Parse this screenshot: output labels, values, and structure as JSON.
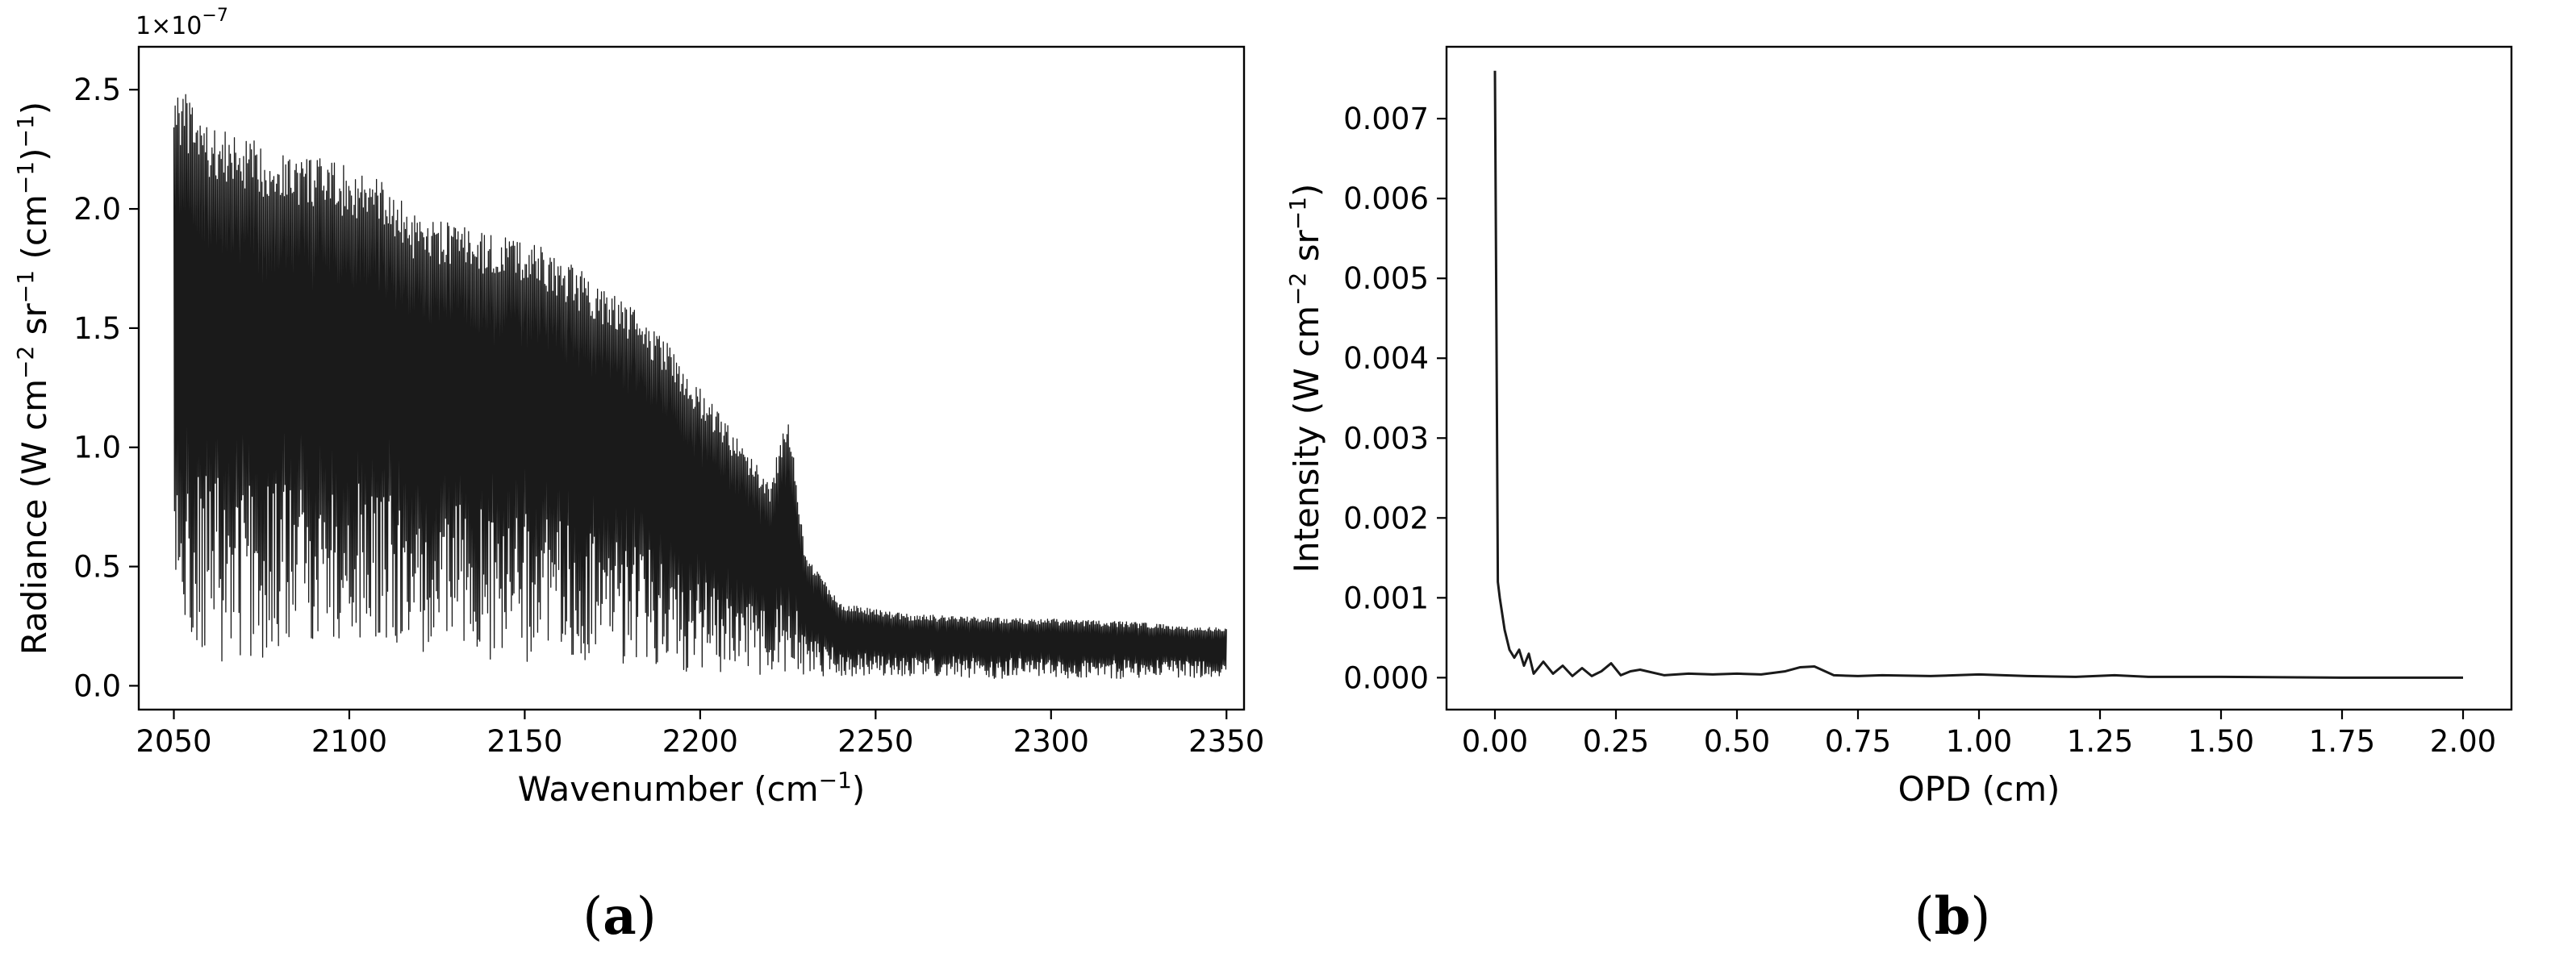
{
  "chart_data": [
    {
      "type": "line",
      "panel_label": "(a)",
      "panel_label_parts": [
        "(",
        "a",
        ")"
      ],
      "xlabel_parts": [
        "Wavenumber (cm",
        "−1",
        ")"
      ],
      "ylabel_parts": [
        "Radiance (W cm",
        "−2",
        " sr",
        "−1",
        " (cm",
        "−1",
        ")",
        "−1",
        ")"
      ],
      "y_scale_parts": [
        "1×10",
        "−7"
      ],
      "xlim": [
        2040,
        2355
      ],
      "ylim": [
        -0.1,
        2.68
      ],
      "x_ticks": [
        2050,
        2100,
        2150,
        2200,
        2250,
        2300,
        2350
      ],
      "x_tick_labels": [
        "2050",
        "2100",
        "2150",
        "2200",
        "2250",
        "2300",
        "2350"
      ],
      "y_ticks": [
        0.0,
        0.5,
        1.0,
        1.5,
        2.0,
        2.5
      ],
      "y_tick_labels": [
        "0.0",
        "0.5",
        "1.0",
        "1.5",
        "2.0",
        "2.5"
      ],
      "series": [
        {
          "x": [
            2050,
            2060,
            2070,
            2080,
            2090,
            2100,
            2110,
            2120,
            2130,
            2140,
            2150,
            2160,
            2170,
            2180,
            2190,
            2200,
            2210,
            2220,
            2225,
            2230,
            2240,
            2250,
            2260,
            2280,
            2300,
            2320,
            2340,
            2350
          ],
          "upper": [
            2.55,
            2.35,
            2.3,
            2.25,
            2.22,
            2.18,
            2.12,
            1.95,
            1.95,
            1.9,
            1.88,
            1.8,
            1.7,
            1.6,
            1.45,
            1.25,
            1.05,
            0.85,
            1.17,
            0.55,
            0.35,
            0.32,
            0.3,
            0.29,
            0.28,
            0.27,
            0.25,
            0.24
          ],
          "lower": [
            0.1,
            0.1,
            0.1,
            0.12,
            0.15,
            0.15,
            0.14,
            0.08,
            0.15,
            0.1,
            0.1,
            0.1,
            0.08,
            0.08,
            0.06,
            0.06,
            0.05,
            0.04,
            0.04,
            0.04,
            0.04,
            0.04,
            0.04,
            0.03,
            0.03,
            0.03,
            0.03,
            0.03
          ]
        }
      ]
    },
    {
      "type": "line",
      "panel_label": "(b)",
      "panel_label_parts": [
        "(",
        "b",
        ")"
      ],
      "xlabel_parts": [
        "OPD (cm)"
      ],
      "ylabel_parts": [
        "Intensity (W cm",
        "−2",
        " sr",
        "−1",
        ")"
      ],
      "xlim": [
        -0.1,
        2.1
      ],
      "ylim": [
        -0.0004,
        0.0079
      ],
      "x_ticks": [
        0.0,
        0.25,
        0.5,
        0.75,
        1.0,
        1.25,
        1.5,
        1.75,
        2.0
      ],
      "x_tick_labels": [
        "0.00",
        "0.25",
        "0.50",
        "0.75",
        "1.00",
        "1.25",
        "1.50",
        "1.75",
        "2.00"
      ],
      "y_ticks": [
        0.0,
        0.001,
        0.002,
        0.003,
        0.004,
        0.005,
        0.006,
        0.007
      ],
      "y_tick_labels": [
        "0.000",
        "0.001",
        "0.002",
        "0.003",
        "0.004",
        "0.005",
        "0.006",
        "0.007"
      ],
      "series": [
        {
          "x": [
            0.0,
            0.003,
            0.006,
            0.01,
            0.015,
            0.02,
            0.03,
            0.04,
            0.05,
            0.06,
            0.07,
            0.08,
            0.1,
            0.12,
            0.14,
            0.16,
            0.18,
            0.2,
            0.22,
            0.24,
            0.26,
            0.28,
            0.3,
            0.35,
            0.4,
            0.45,
            0.5,
            0.55,
            0.6,
            0.63,
            0.66,
            0.7,
            0.75,
            0.8,
            0.9,
            1.0,
            1.1,
            1.2,
            1.28,
            1.35,
            1.5,
            1.75,
            2.0
          ],
          "y": [
            0.0076,
            0.0045,
            0.0012,
            0.001,
            0.0008,
            0.0006,
            0.00035,
            0.00025,
            0.00035,
            0.00015,
            0.0003,
            5e-05,
            0.0002,
            5e-05,
            0.00015,
            2e-05,
            0.00012,
            2e-05,
            8e-05,
            0.00018,
            3e-05,
            8e-05,
            0.0001,
            3e-05,
            5e-05,
            4e-05,
            5e-05,
            4e-05,
            8e-05,
            0.00013,
            0.00014,
            3e-05,
            2e-05,
            3e-05,
            2e-05,
            4e-05,
            2e-05,
            1e-05,
            3e-05,
            1e-05,
            1e-05,
            0.0,
            0.0
          ]
        }
      ]
    }
  ]
}
